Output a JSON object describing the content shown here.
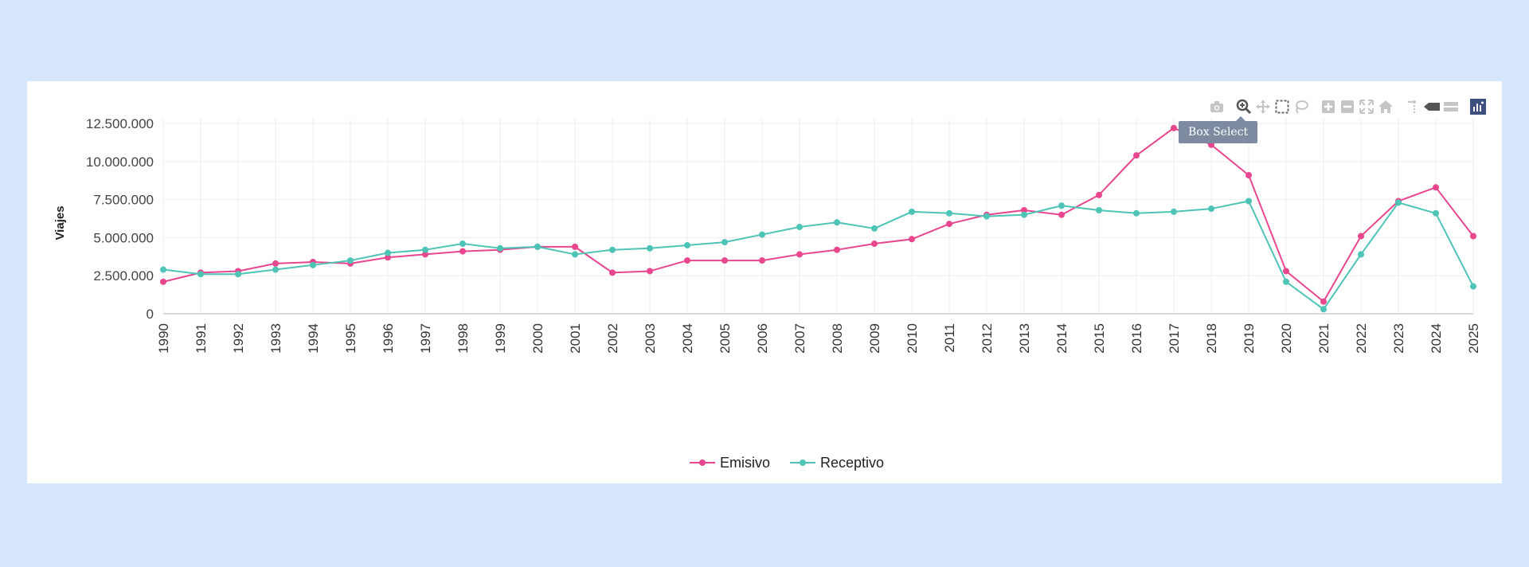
{
  "tooltip": {
    "label": "Box Select"
  },
  "modebar": {
    "buttons": [
      {
        "name": "camera-icon",
        "title": "Download plot as a png"
      },
      {
        "name": "zoom-icon",
        "title": "Zoom"
      },
      {
        "name": "pan-icon",
        "title": "Pan"
      },
      {
        "name": "box-select-icon",
        "title": "Box Select"
      },
      {
        "name": "lasso-select-icon",
        "title": "Lasso Select"
      },
      {
        "name": "zoom-in-icon",
        "title": "Zoom in"
      },
      {
        "name": "zoom-out-icon",
        "title": "Zoom out"
      },
      {
        "name": "autoscale-icon",
        "title": "Autoscale"
      },
      {
        "name": "reset-axes-icon",
        "title": "Reset axes"
      },
      {
        "name": "spike-lines-icon",
        "title": "Toggle Spike Lines"
      },
      {
        "name": "hover-closest-icon",
        "title": "Show closest data on hover"
      },
      {
        "name": "hover-compare-icon",
        "title": "Compare data on hover"
      },
      {
        "name": "plotly-logo-icon",
        "title": "Produced with Plotly"
      }
    ]
  },
  "colors": {
    "emisivo": "#e8478f",
    "receptivo": "#4ec4b6",
    "grid": "#eeeeee",
    "axis_text": "#444444"
  },
  "chart_data": {
    "type": "line",
    "title": "",
    "xlabel": "",
    "ylabel": "Viajes",
    "ylim": [
      0,
      12500000
    ],
    "yticks": [
      0,
      2500000,
      5000000,
      7500000,
      10000000,
      12500000
    ],
    "ytick_labels": [
      "0",
      "2.500.000",
      "5.000.000",
      "7.500.000",
      "10.000.000",
      "12.500.000"
    ],
    "categories": [
      "1990",
      "1991",
      "1992",
      "1993",
      "1994",
      "1995",
      "1996",
      "1997",
      "1998",
      "1999",
      "2000",
      "2001",
      "2002",
      "2003",
      "2004",
      "2005",
      "2006",
      "2007",
      "2008",
      "2009",
      "2010",
      "2011",
      "2012",
      "2013",
      "2014",
      "2015",
      "2016",
      "2017",
      "2018",
      "2019",
      "2020",
      "2021",
      "2022",
      "2023",
      "2024",
      "2025"
    ],
    "legend_position": "bottom-center",
    "series": [
      {
        "name": "Emisivo",
        "color": "#e8478f",
        "values": [
          2100000,
          2700000,
          2800000,
          3300000,
          3400000,
          3300000,
          3700000,
          3900000,
          4100000,
          4200000,
          4400000,
          4400000,
          2700000,
          2800000,
          3500000,
          3500000,
          3500000,
          3900000,
          4200000,
          4600000,
          4900000,
          5900000,
          6500000,
          6800000,
          6500000,
          7800000,
          10400000,
          12200000,
          11100000,
          9100000,
          2800000,
          800000,
          5100000,
          7400000,
          8300000,
          5100000
        ]
      },
      {
        "name": "Receptivo",
        "color": "#4ec4b6",
        "values": [
          2900000,
          2600000,
          2600000,
          2900000,
          3200000,
          3500000,
          4000000,
          4200000,
          4600000,
          4300000,
          4400000,
          3900000,
          4200000,
          4300000,
          4500000,
          4700000,
          5200000,
          5700000,
          6000000,
          5600000,
          6700000,
          6600000,
          6400000,
          6500000,
          7100000,
          6800000,
          6600000,
          6700000,
          6900000,
          7400000,
          2100000,
          300000,
          3900000,
          7300000,
          6600000,
          1800000
        ]
      }
    ]
  }
}
